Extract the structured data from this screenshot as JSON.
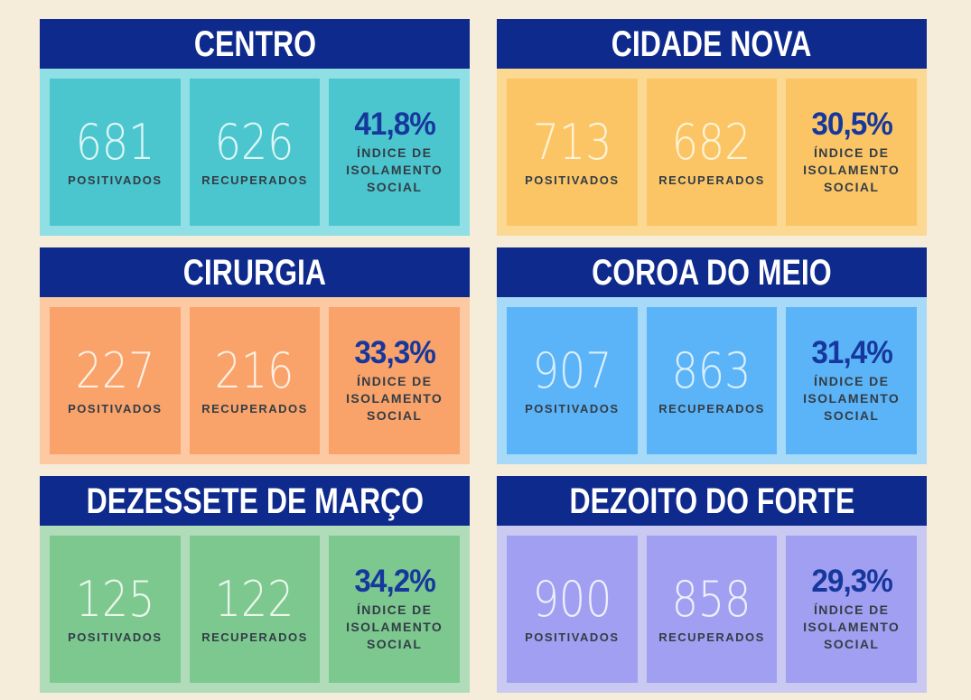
{
  "theme": {
    "page_background": "#f5ecda",
    "header_background": "#0e2a8c",
    "header_text": "#ffffff",
    "percent_color": "#16389c",
    "label_color": "#333d46"
  },
  "labels": {
    "positivados": "POSITIVADOS",
    "recuperados": "RECUPERADOS",
    "indice_lines": [
      "ÍNDICE DE",
      "ISOLAMENTO",
      "SOCIAL"
    ]
  },
  "cards": [
    {
      "title": "CENTRO",
      "positivados": "681",
      "recuperados": "626",
      "isolamento": "41,8%",
      "colors": {
        "background": "#8fdfe4",
        "box": "#4cc6ce",
        "number": "#ddf6f6"
      }
    },
    {
      "title": "CIDADE NOVA",
      "positivados": "713",
      "recuperados": "682",
      "isolamento": "30,5%",
      "colors": {
        "background": "#fbd992",
        "box": "#fbc566",
        "number": "#fdf3d6"
      }
    },
    {
      "title": "CIRURGIA",
      "positivados": "227",
      "recuperados": "216",
      "isolamento": "33,3%",
      "colors": {
        "background": "#fcc9a2",
        "box": "#f9a269",
        "number": "#fdefe2"
      }
    },
    {
      "title": "COROA DO MEIO",
      "positivados": "907",
      "recuperados": "863",
      "isolamento": "31,4%",
      "colors": {
        "background": "#a6daf8",
        "box": "#5bb3f8",
        "number": "#d9effd"
      }
    },
    {
      "title": "DEZESSETE DE MARÇO",
      "positivados": "125",
      "recuperados": "122",
      "isolamento": "34,2%",
      "colors": {
        "background": "#b0dcba",
        "box": "#7cc88f",
        "number": "#e9f7ea"
      }
    },
    {
      "title": "DEZOITO DO FORTE",
      "positivados": "900",
      "recuperados": "858",
      "isolamento": "29,3%",
      "colors": {
        "background": "#cac9f2",
        "box": "#a19ff2",
        "number": "#efeffc"
      }
    }
  ],
  "chart_data": {
    "type": "table",
    "columns": [
      "Bairro",
      "Positivados",
      "Recuperados",
      "Índice de Isolamento Social"
    ],
    "rows": [
      [
        "Centro",
        681,
        626,
        "41,8%"
      ],
      [
        "Cidade Nova",
        713,
        682,
        "30,5%"
      ],
      [
        "Cirurgia",
        227,
        216,
        "33,3%"
      ],
      [
        "Coroa do Meio",
        907,
        863,
        "31,4%"
      ],
      [
        "Dezessete de Março",
        125,
        122,
        "34,2%"
      ],
      [
        "Dezoito do Forte",
        900,
        858,
        "29,3%"
      ]
    ]
  }
}
